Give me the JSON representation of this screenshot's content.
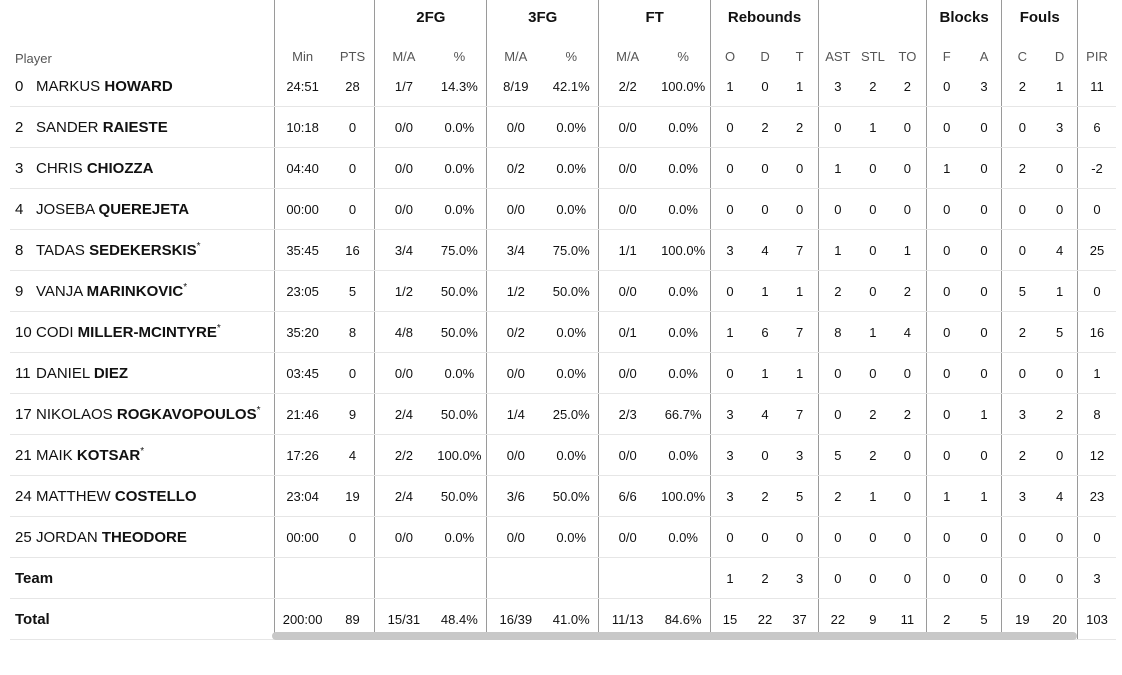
{
  "groups": {
    "player": "Player",
    "fg2": "2FG",
    "fg3": "3FG",
    "ft": "FT",
    "rebounds": "Rebounds",
    "blocks": "Blocks",
    "fouls": "Fouls"
  },
  "columns": [
    "Min",
    "PTS",
    "M/A",
    "%",
    "M/A",
    "%",
    "M/A",
    "%",
    "O",
    "D",
    "T",
    "AST",
    "STL",
    "TO",
    "F",
    "A",
    "C",
    "D",
    "PIR"
  ],
  "players": [
    {
      "no": "0",
      "first": "MARKUS",
      "last": "HOWARD",
      "star": "",
      "stats": [
        "24:51",
        "28",
        "1/7",
        "14.3%",
        "8/19",
        "42.1%",
        "2/2",
        "100.0%",
        "1",
        "0",
        "1",
        "3",
        "2",
        "2",
        "0",
        "3",
        "2",
        "1",
        "11"
      ]
    },
    {
      "no": "2",
      "first": "SANDER",
      "last": "RAIESTE",
      "star": "",
      "stats": [
        "10:18",
        "0",
        "0/0",
        "0.0%",
        "0/0",
        "0.0%",
        "0/0",
        "0.0%",
        "0",
        "2",
        "2",
        "0",
        "1",
        "0",
        "0",
        "0",
        "0",
        "3",
        "6"
      ]
    },
    {
      "no": "3",
      "first": "CHRIS",
      "last": "CHIOZZA",
      "star": "",
      "stats": [
        "04:40",
        "0",
        "0/0",
        "0.0%",
        "0/2",
        "0.0%",
        "0/0",
        "0.0%",
        "0",
        "0",
        "0",
        "1",
        "0",
        "0",
        "1",
        "0",
        "2",
        "0",
        "-2"
      ]
    },
    {
      "no": "4",
      "first": "JOSEBA",
      "last": "QUEREJETA",
      "star": "",
      "stats": [
        "00:00",
        "0",
        "0/0",
        "0.0%",
        "0/0",
        "0.0%",
        "0/0",
        "0.0%",
        "0",
        "0",
        "0",
        "0",
        "0",
        "0",
        "0",
        "0",
        "0",
        "0",
        "0"
      ]
    },
    {
      "no": "8",
      "first": "TADAS",
      "last": "SEDEKERSKIS",
      "star": "*",
      "stats": [
        "35:45",
        "16",
        "3/4",
        "75.0%",
        "3/4",
        "75.0%",
        "1/1",
        "100.0%",
        "3",
        "4",
        "7",
        "1",
        "0",
        "1",
        "0",
        "0",
        "0",
        "4",
        "25"
      ]
    },
    {
      "no": "9",
      "first": "VANJA",
      "last": "MARINKOVIC",
      "star": "*",
      "stats": [
        "23:05",
        "5",
        "1/2",
        "50.0%",
        "1/2",
        "50.0%",
        "0/0",
        "0.0%",
        "0",
        "1",
        "1",
        "2",
        "0",
        "2",
        "0",
        "0",
        "5",
        "1",
        "0"
      ]
    },
    {
      "no": "10",
      "first": "CODI",
      "last": "MILLER-MCINTYRE",
      "star": "*",
      "stats": [
        "35:20",
        "8",
        "4/8",
        "50.0%",
        "0/2",
        "0.0%",
        "0/1",
        "0.0%",
        "1",
        "6",
        "7",
        "8",
        "1",
        "4",
        "0",
        "0",
        "2",
        "5",
        "16"
      ]
    },
    {
      "no": "11",
      "first": "DANIEL",
      "last": "DIEZ",
      "star": "",
      "stats": [
        "03:45",
        "0",
        "0/0",
        "0.0%",
        "0/0",
        "0.0%",
        "0/0",
        "0.0%",
        "0",
        "1",
        "1",
        "0",
        "0",
        "0",
        "0",
        "0",
        "0",
        "0",
        "1"
      ]
    },
    {
      "no": "17",
      "first": "NIKOLAOS",
      "last": "ROGKAVOPOULOS",
      "star": "*",
      "stats": [
        "21:46",
        "9",
        "2/4",
        "50.0%",
        "1/4",
        "25.0%",
        "2/3",
        "66.7%",
        "3",
        "4",
        "7",
        "0",
        "2",
        "2",
        "0",
        "1",
        "3",
        "2",
        "8"
      ]
    },
    {
      "no": "21",
      "first": "MAIK",
      "last": "KOTSAR",
      "star": "*",
      "stats": [
        "17:26",
        "4",
        "2/2",
        "100.0%",
        "0/0",
        "0.0%",
        "0/0",
        "0.0%",
        "3",
        "0",
        "3",
        "5",
        "2",
        "0",
        "0",
        "0",
        "2",
        "0",
        "12"
      ]
    },
    {
      "no": "24",
      "first": "MATTHEW",
      "last": "COSTELLO",
      "star": "",
      "stats": [
        "23:04",
        "19",
        "2/4",
        "50.0%",
        "3/6",
        "50.0%",
        "6/6",
        "100.0%",
        "3",
        "2",
        "5",
        "2",
        "1",
        "0",
        "1",
        "1",
        "3",
        "4",
        "23"
      ]
    },
    {
      "no": "25",
      "first": "JORDAN",
      "last": "THEODORE",
      "star": "",
      "stats": [
        "00:00",
        "0",
        "0/0",
        "0.0%",
        "0/0",
        "0.0%",
        "0/0",
        "0.0%",
        "0",
        "0",
        "0",
        "0",
        "0",
        "0",
        "0",
        "0",
        "0",
        "0",
        "0"
      ]
    }
  ],
  "team": {
    "label": "Team",
    "stats": [
      "",
      "",
      "",
      "",
      "",
      "",
      "",
      "",
      "1",
      "2",
      "3",
      "0",
      "0",
      "0",
      "0",
      "0",
      "0",
      "0",
      "3"
    ]
  },
  "total": {
    "label": "Total",
    "stats": [
      "200:00",
      "89",
      "15/31",
      "48.4%",
      "16/39",
      "41.0%",
      "11/13",
      "84.6%",
      "15",
      "22",
      "37",
      "22",
      "9",
      "11",
      "2",
      "5",
      "19",
      "20",
      "103"
    ]
  }
}
